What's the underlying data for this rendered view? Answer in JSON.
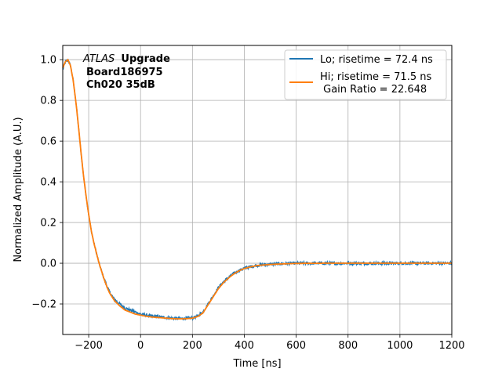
{
  "chart_data": {
    "type": "line",
    "title": "",
    "xlabel": "Time [ns]",
    "ylabel": "Normalized Amplitude (A.U.)",
    "xlim": [
      -300,
      1200
    ],
    "ylim": [
      -0.35,
      1.07
    ],
    "xticks": [
      -200,
      0,
      200,
      400,
      600,
      800,
      1000,
      1200
    ],
    "xtick_labels": [
      "−200",
      "0",
      "200",
      "400",
      "600",
      "800",
      "1000",
      "1200"
    ],
    "yticks": [
      -0.2,
      0.0,
      0.2,
      0.4,
      0.6,
      0.8,
      1.0
    ],
    "ytick_labels": [
      "−0.2",
      "0.0",
      "0.2",
      "0.4",
      "0.6",
      "0.8",
      "1.0"
    ],
    "grid": true,
    "legend_position": "top-right",
    "annotation": {
      "italic": "ATLAS",
      "bold1": "Upgrade",
      "line2": "Board186975",
      "line3": "Ch020 35dB"
    },
    "series": [
      {
        "name": "Lo; risetime = 72.4 ns",
        "color": "#1f77b4",
        "noisy": true,
        "x": [
          -300,
          -290,
          -280,
          -270,
          -260,
          -250,
          -240,
          -230,
          -220,
          -210,
          -200,
          -190,
          -180,
          -170,
          -160,
          -150,
          -140,
          -130,
          -120,
          -110,
          -100,
          -80,
          -60,
          -40,
          -20,
          0,
          20,
          40,
          60,
          80,
          100,
          120,
          140,
          160,
          180,
          200,
          220,
          240,
          260,
          280,
          300,
          320,
          340,
          360,
          380,
          400,
          420,
          450,
          500,
          550,
          600,
          700,
          800,
          900,
          1000,
          1100,
          1200
        ],
        "y": [
          0.95,
          0.99,
          1.0,
          0.97,
          0.9,
          0.8,
          0.68,
          0.55,
          0.43,
          0.33,
          0.24,
          0.16,
          0.1,
          0.05,
          0.0,
          -0.04,
          -0.08,
          -0.11,
          -0.14,
          -0.16,
          -0.18,
          -0.2,
          -0.22,
          -0.23,
          -0.24,
          -0.25,
          -0.255,
          -0.26,
          -0.262,
          -0.265,
          -0.267,
          -0.27,
          -0.272,
          -0.272,
          -0.27,
          -0.268,
          -0.26,
          -0.24,
          -0.2,
          -0.16,
          -0.12,
          -0.09,
          -0.07,
          -0.05,
          -0.035,
          -0.025,
          -0.018,
          -0.01,
          -0.005,
          -0.002,
          0.0,
          0.0,
          0.0,
          0.0,
          0.0,
          0.0,
          0.0
        ]
      },
      {
        "name": "Hi; risetime = 71.5 ns\n Gain Ratio = 22.648",
        "color": "#ff7f0e",
        "noisy": false,
        "x": [
          -300,
          -290,
          -280,
          -270,
          -260,
          -250,
          -240,
          -230,
          -220,
          -210,
          -200,
          -190,
          -180,
          -170,
          -160,
          -150,
          -140,
          -130,
          -120,
          -110,
          -100,
          -80,
          -60,
          -40,
          -20,
          0,
          20,
          40,
          60,
          80,
          100,
          120,
          140,
          160,
          180,
          200,
          220,
          240,
          260,
          280,
          300,
          320,
          340,
          360,
          380,
          400,
          420,
          450,
          500,
          550,
          600,
          700,
          800,
          900,
          1000,
          1100,
          1200
        ],
        "y": [
          0.96,
          0.99,
          1.0,
          0.97,
          0.9,
          0.8,
          0.68,
          0.55,
          0.43,
          0.33,
          0.24,
          0.16,
          0.1,
          0.05,
          0.0,
          -0.04,
          -0.08,
          -0.115,
          -0.145,
          -0.165,
          -0.185,
          -0.21,
          -0.23,
          -0.24,
          -0.25,
          -0.255,
          -0.26,
          -0.264,
          -0.266,
          -0.268,
          -0.27,
          -0.272,
          -0.273,
          -0.273,
          -0.272,
          -0.27,
          -0.262,
          -0.245,
          -0.205,
          -0.165,
          -0.125,
          -0.095,
          -0.072,
          -0.052,
          -0.037,
          -0.026,
          -0.019,
          -0.011,
          -0.006,
          -0.003,
          -0.001,
          0.0,
          0.0,
          0.0,
          0.0,
          0.0,
          0.0
        ]
      }
    ]
  }
}
